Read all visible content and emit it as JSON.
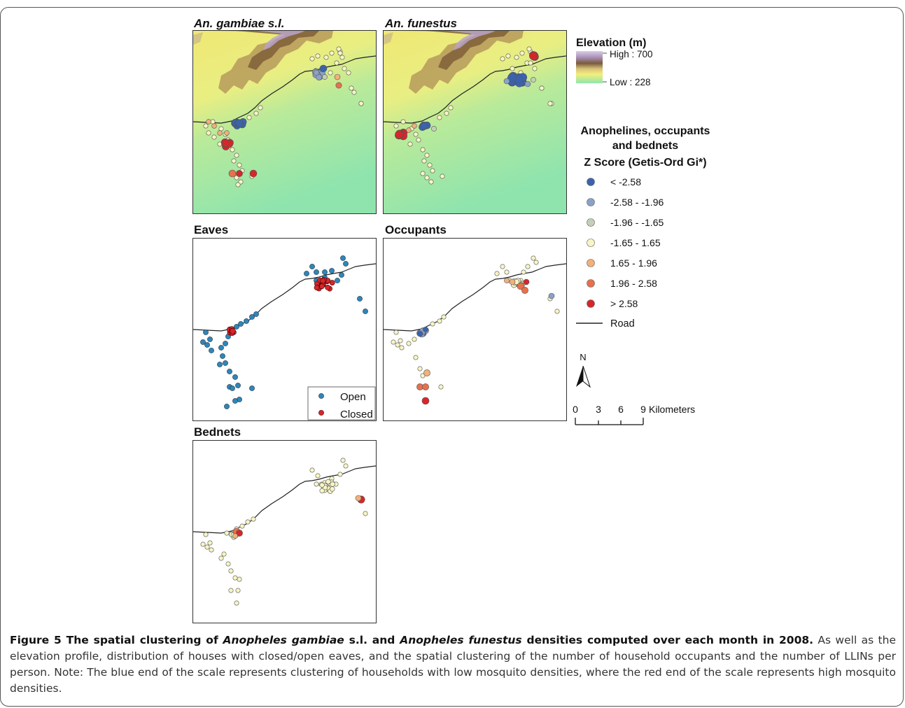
{
  "panels": {
    "gambiae": {
      "title": "An. gambiae s.l."
    },
    "funestus": {
      "title": "An. funestus"
    },
    "eaves": {
      "title": "Eaves"
    },
    "occupants": {
      "title": "Occupants"
    },
    "bednets": {
      "title": "Bednets"
    }
  },
  "eaves_legend": {
    "open": "Open",
    "closed": "Closed"
  },
  "elevation_legend": {
    "title": "Elevation (m)",
    "high": "High : 700",
    "low": "Low : 228"
  },
  "zscore_legend": {
    "title_line1": "Anophelines, occupants",
    "title_line2": "and bednets",
    "title_line3": "Z Score (Getis-Ord Gi*)",
    "items": [
      {
        "label": "< -2.58",
        "color": "#3b63ad"
      },
      {
        "label": "-2.58 - -1.96",
        "color": "#8aa2c8"
      },
      {
        "label": "-1.96 - -1.65",
        "color": "#c2d1b6"
      },
      {
        "label": "-1.65 - 1.65",
        "color": "#f7f5c4"
      },
      {
        "label": "1.65 - 1.96",
        "color": "#f2b07a"
      },
      {
        "label": "1.96 - 2.58",
        "color": "#e8704c"
      },
      {
        "label": "> 2.58",
        "color": "#d7262a"
      }
    ],
    "road": "Road"
  },
  "north_arrow": {
    "label": "N"
  },
  "scale_bar": {
    "ticks": [
      "0",
      "3",
      "6",
      "9"
    ],
    "unit": "Kilometers"
  },
  "colors": {
    "open_eaves": "#2f86b8",
    "closed_eaves": "#d7262a",
    "road": "#222222",
    "elev_high": "#c9b8d8",
    "elev_mid": "#9c7a4a",
    "elev_yellow": "#f0ec7a",
    "elev_low": "#9ae6a4"
  },
  "caption": {
    "figure_label": "Figure 5",
    "lead_1": " The spatial clustering of ",
    "species_1": "Anopheles gambiae",
    "lead_2": " s.l. and ",
    "species_2": "Anopheles funestus",
    "lead_3": " densities computed over each month in 2008.",
    "body": " As well as the elevation profile, distribution of houses with closed/open eaves, and the spatial clustering of the number of household occupants and the number of LLINs per person. Note: The blue end of the scale represents clustering of households with low mosquito densities, where the red end of the scale represents high mosquito densities."
  }
}
